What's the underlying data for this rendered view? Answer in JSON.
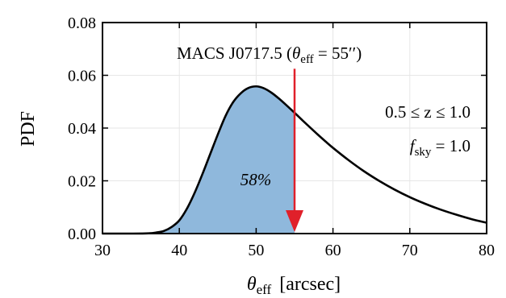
{
  "chart_data": {
    "type": "area",
    "title": "",
    "xlabel": {
      "symbol": "θ",
      "sub": "eff",
      "unit": "[arcsec]"
    },
    "ylabel": "PDF",
    "xlim": [
      30,
      80
    ],
    "ylim": [
      0,
      0.08
    ],
    "xticks": [
      30,
      40,
      50,
      60,
      70,
      80
    ],
    "yticks": [
      "0.00",
      "0.02",
      "0.04",
      "0.06",
      "0.08"
    ],
    "grid": true,
    "distribution": {
      "x": [
        30,
        34,
        36,
        37,
        38,
        39,
        40,
        41,
        42,
        43,
        44,
        45,
        46,
        47,
        48,
        49,
        50,
        51,
        52,
        53,
        54,
        55,
        56,
        57,
        58,
        59,
        60,
        62,
        64,
        66,
        68,
        70,
        72,
        74,
        76,
        78,
        80
      ],
      "y": [
        0.0,
        0.0,
        0.0001,
        0.0004,
        0.001,
        0.0025,
        0.005,
        0.0095,
        0.0155,
        0.0225,
        0.03,
        0.0375,
        0.0445,
        0.0498,
        0.0532,
        0.0552,
        0.0558,
        0.0551,
        0.0534,
        0.0511,
        0.0485,
        0.0458,
        0.043,
        0.0403,
        0.0376,
        0.035,
        0.0325,
        0.0279,
        0.0237,
        0.02,
        0.0167,
        0.0138,
        0.0113,
        0.0091,
        0.0072,
        0.0055,
        0.0041
      ]
    },
    "shaded_region": {
      "x_start": 30,
      "x_end": 55,
      "label": "58%",
      "color": "#8fb8dc"
    },
    "marker": {
      "x": 55,
      "y_top": 0.0625,
      "color": "#e0202a",
      "label": {
        "cluster": "MACS J0717.5 (",
        "symbol": "θ",
        "sub": "eff",
        "value": " = 55′′)"
      }
    },
    "annotations": [
      {
        "text": "0.5 ≤ z ≤ 1.0"
      },
      {
        "symbol": "f",
        "sub": "sky",
        "value": " = 1.0"
      }
    ]
  }
}
